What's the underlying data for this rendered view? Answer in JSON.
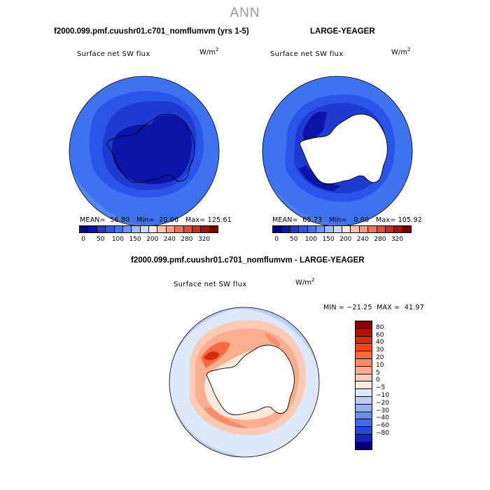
{
  "figure": {
    "title": "ANN"
  },
  "chart_data": [
    {
      "type": "heatmap",
      "projection": "south-polar-stereographic",
      "title": "f2000.099.pmf.cuushr01.c701_nomflumvm (yrs 1-5)",
      "field": "Surface net SW flux",
      "units": "W/m",
      "units_sup": "2",
      "stats": {
        "mean": "56.80",
        "min": "20.06",
        "max": "125.61"
      },
      "stats_text": "MEAN=  56.80   Min=  20.06   Max= 125.61",
      "colorbar": {
        "colors": [
          "#00007f",
          "#0b14a6",
          "#1e3ad0",
          "#2a55e8",
          "#3f72ef",
          "#6b95f2",
          "#9bbaf6",
          "#cbdcfb",
          "#fde9dc",
          "#fbc6a8",
          "#f99e78",
          "#f5704a",
          "#ec4c25",
          "#d22a12",
          "#a61208",
          "#7a0000"
        ],
        "labels": [
          "0",
          "50",
          "100",
          "150",
          "200",
          "240",
          "280",
          "320"
        ]
      }
    },
    {
      "type": "heatmap",
      "projection": "south-polar-stereographic",
      "title": "LARGE-YEAGER",
      "field": "Surface net SW flux",
      "units": "W/m",
      "units_sup": "2",
      "stats": {
        "mean": "65.73",
        "min": "0.00",
        "max": "105.92"
      },
      "stats_text": "MEAN=  65.73   Min=   0.00   Max= 105.92",
      "colorbar": {
        "colors": [
          "#00007f",
          "#0b14a6",
          "#1e3ad0",
          "#2a55e8",
          "#3f72ef",
          "#6b95f2",
          "#9bbaf6",
          "#cbdcfb",
          "#fde9dc",
          "#fbc6a8",
          "#f99e78",
          "#f5704a",
          "#ec4c25",
          "#d22a12",
          "#a61208",
          "#7a0000"
        ],
        "labels": [
          "0",
          "50",
          "100",
          "150",
          "200",
          "240",
          "280",
          "320"
        ]
      }
    },
    {
      "type": "heatmap",
      "projection": "south-polar-stereographic",
      "title": "f2000.099.pmf.cuushr01.c701_nomflumvm - LARGE-YEAGER",
      "field": "Surface net SW flux",
      "units": "W/m",
      "units_sup": "2",
      "stats": {
        "min": "-21.25",
        "max": "41.97"
      },
      "stats_text": "MIN = −21.25  MAX =  41.97",
      "colorbar": {
        "colors": [
          "#8b0000",
          "#b01204",
          "#d72a08",
          "#f1471b",
          "#f66a42",
          "#f98d69",
          "#fbae8f",
          "#fccbb5",
          "#fde8dc",
          "#dde8fa",
          "#b9cdf6",
          "#8fb0f1",
          "#6690ee",
          "#3f6bea",
          "#2349d8",
          "#1128b8",
          "#00007f"
        ],
        "labels": [
          "80",
          "60",
          "40",
          "30",
          "20",
          "10",
          "5",
          "0",
          "−5",
          "−10",
          "−20",
          "−30",
          "−40",
          "−60",
          "−80"
        ]
      }
    }
  ]
}
